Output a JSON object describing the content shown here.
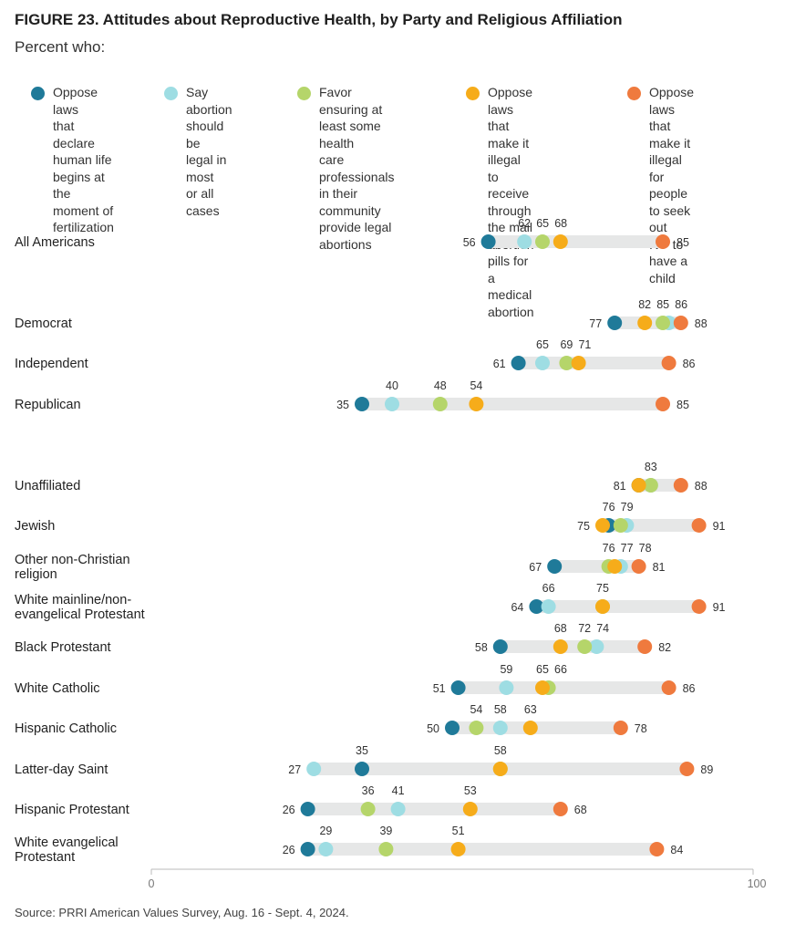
{
  "header": {
    "title": "FIGURE 23.  Attitudes about Reproductive Health, by Party and Religious Affiliation",
    "subtitle": "Percent who:"
  },
  "source": "Source: PRRI American Values Survey, Aug. 16 - Sept. 4, 2024.",
  "chart_data": {
    "type": "scatter",
    "subtype": "dot-range",
    "title": "FIGURE 23.  Attitudes about Reproductive Health, by Party and Religious Affiliation",
    "xlim": [
      0,
      100
    ],
    "xticks": [
      "0",
      "100"
    ],
    "grid": false,
    "legend_placement": "top",
    "series": [
      {
        "name": "Oppose laws that declare human life begins at the moment of fertilization",
        "lines": [
          "Oppose laws",
          "that declare",
          "human life",
          "begins at the",
          "moment of",
          "fertilization"
        ],
        "color": "#1f7a99",
        "values": [
          56,
          77,
          61,
          35,
          81,
          76,
          67,
          64,
          58,
          51,
          50,
          35,
          26,
          26
        ]
      },
      {
        "name": "Say abortion should be legal in most or all cases",
        "lines": [
          "Say abortion",
          "should be",
          "legal in most",
          "or all cases"
        ],
        "color": "#9edde3",
        "values": [
          62,
          86,
          65,
          40,
          83,
          79,
          78,
          66,
          74,
          59,
          58,
          27,
          41,
          29
        ]
      },
      {
        "name": "Favor ensuring at least some health care professionals in their community provide legal abortions",
        "lines": [
          "Favor ensuring at",
          "least some health",
          "care professionals",
          "in their community",
          "provide legal",
          "abortions"
        ],
        "color": "#b5d56a",
        "values": [
          65,
          85,
          69,
          48,
          83,
          78,
          76,
          75,
          72,
          66,
          54,
          58,
          36,
          39
        ]
      },
      {
        "name": "Oppose laws that make it illegal to receive through the mail abortion pills for a medical abortion",
        "lines": [
          "Oppose laws that",
          "make it illegal to",
          "receive through",
          "the mail abortion",
          "pills for a medical",
          "abortion"
        ],
        "color": "#f6ac1a",
        "values": [
          68,
          82,
          71,
          54,
          81,
          75,
          77,
          75,
          68,
          65,
          63,
          58,
          53,
          51
        ]
      },
      {
        "name": "Oppose laws that make it illegal for people to seek out IVF to have a child",
        "lines": [
          "Oppose laws that",
          "make it illegal for",
          "people to seek out",
          "IVF to have a child"
        ],
        "color": "#ef7a3e",
        "values": [
          85,
          88,
          86,
          85,
          88,
          91,
          81,
          91,
          82,
          86,
          78,
          89,
          68,
          84
        ]
      }
    ],
    "rows": [
      {
        "label": [
          "All Americans"
        ],
        "above": [
          "62",
          "65",
          "68"
        ],
        "left": "56",
        "right": "85"
      },
      {
        "label": [
          "Democrat"
        ],
        "above": [
          "82",
          "85",
          "86"
        ],
        "left": "77",
        "right": "88"
      },
      {
        "label": [
          "Independent"
        ],
        "above": [
          "65",
          "69",
          "71"
        ],
        "left": "61",
        "right": "86"
      },
      {
        "label": [
          "Republican"
        ],
        "above": [
          "40",
          "48",
          "54"
        ],
        "left": "35",
        "right": "85"
      },
      {
        "label": [
          "Unaffiliated"
        ],
        "above": [
          "83"
        ],
        "left": "81",
        "right": "88"
      },
      {
        "label": [
          "Jewish"
        ],
        "above": [
          "76",
          "79"
        ],
        "left": "75",
        "right": "91"
      },
      {
        "label": [
          "Other non-Christian",
          "religion"
        ],
        "above": [
          "76",
          "77",
          "78"
        ],
        "left": "67",
        "right": "81"
      },
      {
        "label": [
          "White mainline/non-",
          "evangelical Protestant"
        ],
        "above": [
          "66",
          "75"
        ],
        "left": "64",
        "right": "91"
      },
      {
        "label": [
          "Black Protestant"
        ],
        "above": [
          "68",
          "72",
          "74"
        ],
        "left": "58",
        "right": "82"
      },
      {
        "label": [
          "White Catholic"
        ],
        "above": [
          "59",
          "65",
          "66"
        ],
        "left": "51",
        "right": "86"
      },
      {
        "label": [
          "Hispanic Catholic"
        ],
        "above": [
          "54",
          "58",
          "63"
        ],
        "left": "50",
        "right": "78"
      },
      {
        "label": [
          "Latter-day Saint"
        ],
        "above": [
          "35",
          "58"
        ],
        "left": "27",
        "right": "89"
      },
      {
        "label": [
          "Hispanic Protestant"
        ],
        "above": [
          "36",
          "41",
          "53"
        ],
        "left": "26",
        "right": "68"
      },
      {
        "label": [
          "White evangelical",
          "Protestant"
        ],
        "above": [
          "29",
          "39",
          "51"
        ],
        "left": "26",
        "right": "84"
      }
    ]
  }
}
